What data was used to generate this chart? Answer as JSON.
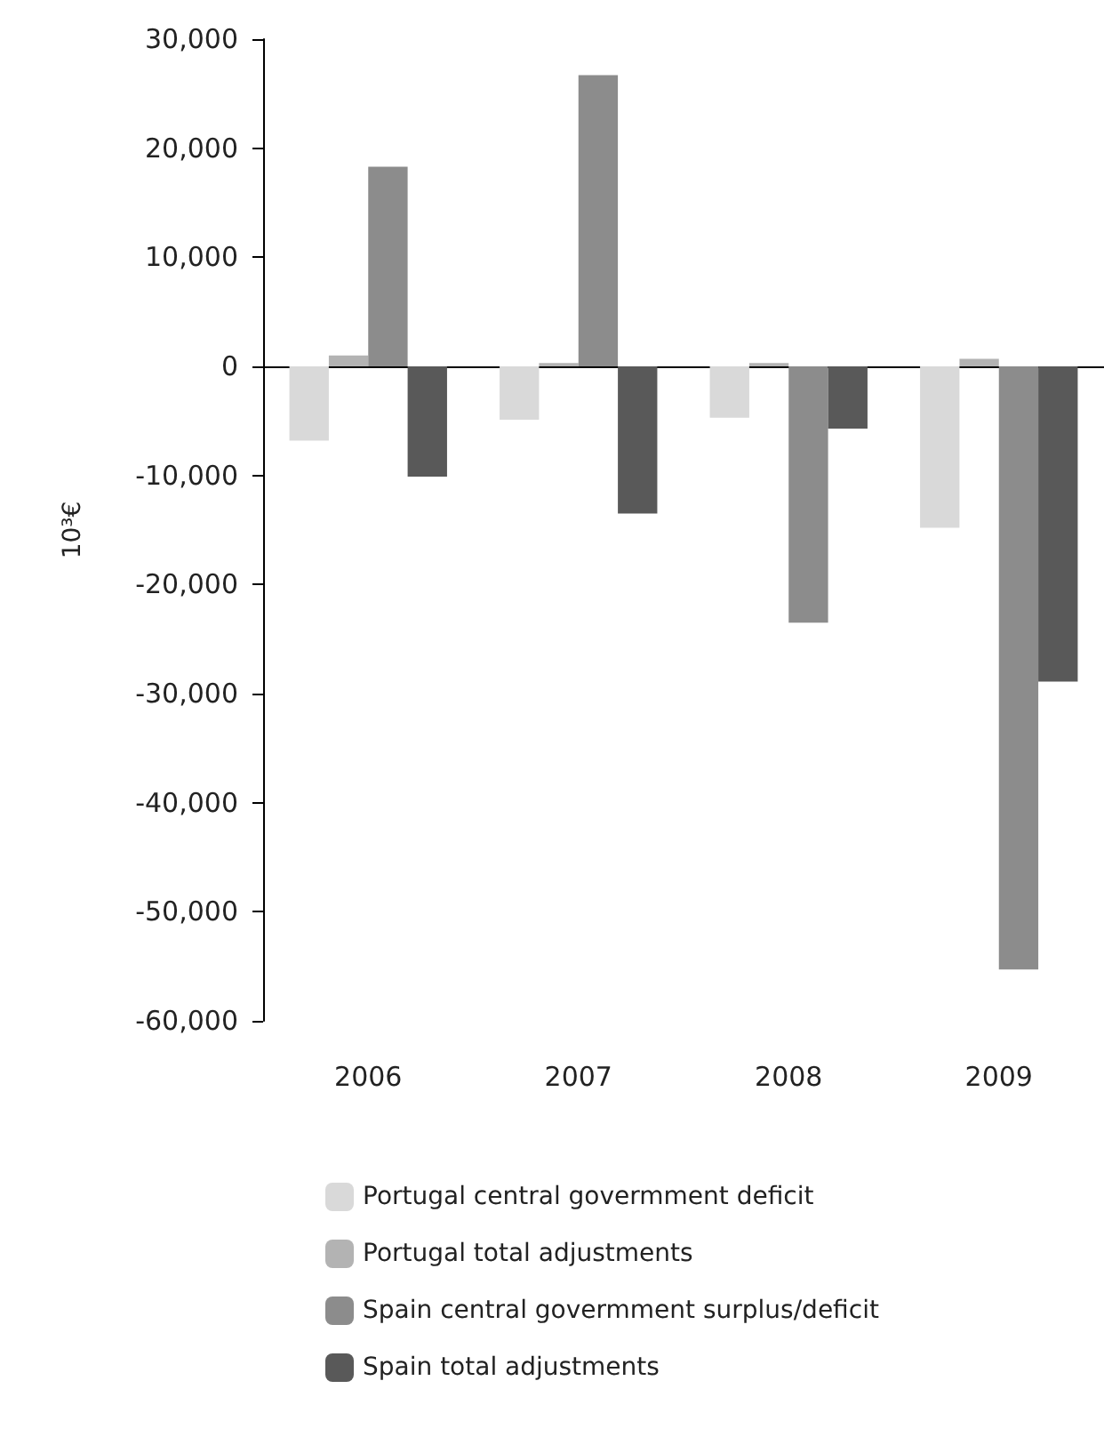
{
  "chart_data": {
    "type": "bar",
    "ylabel": "10³€",
    "categories": [
      "2006",
      "2007",
      "2008",
      "2009"
    ],
    "series": [
      {
        "name": "Portugal central govermment deficit",
        "color": "#d9d9d9",
        "values": [
          -6800,
          -4900,
          -4700,
          -14800
        ]
      },
      {
        "name": "Portugal total adjustments",
        "color": "#b3b3b3",
        "values": [
          1000,
          300,
          300,
          700
        ]
      },
      {
        "name": "Spain central govermment surplus/deficit",
        "color": "#8c8c8c",
        "values": [
          18300,
          26700,
          -23500,
          -55300
        ]
      },
      {
        "name": "Spain total adjustments",
        "color": "#595959",
        "values": [
          -10100,
          -13500,
          -5700,
          -28900
        ]
      }
    ],
    "ylim": [
      -60000,
      30000
    ],
    "yticks": [
      {
        "value": -60000,
        "label": "-60,000"
      },
      {
        "value": -50000,
        "label": "-50,000"
      },
      {
        "value": -40000,
        "label": "-40,000"
      },
      {
        "value": -30000,
        "label": "-30,000"
      },
      {
        "value": -20000,
        "label": "-20,000"
      },
      {
        "value": -10000,
        "label": "-10,000"
      },
      0,
      {
        "value": 10000,
        "label": "10,000"
      },
      {
        "value": 20000,
        "label": "20,000"
      },
      {
        "value": 30000,
        "label": "30,000"
      }
    ],
    "legend": "bottom"
  }
}
